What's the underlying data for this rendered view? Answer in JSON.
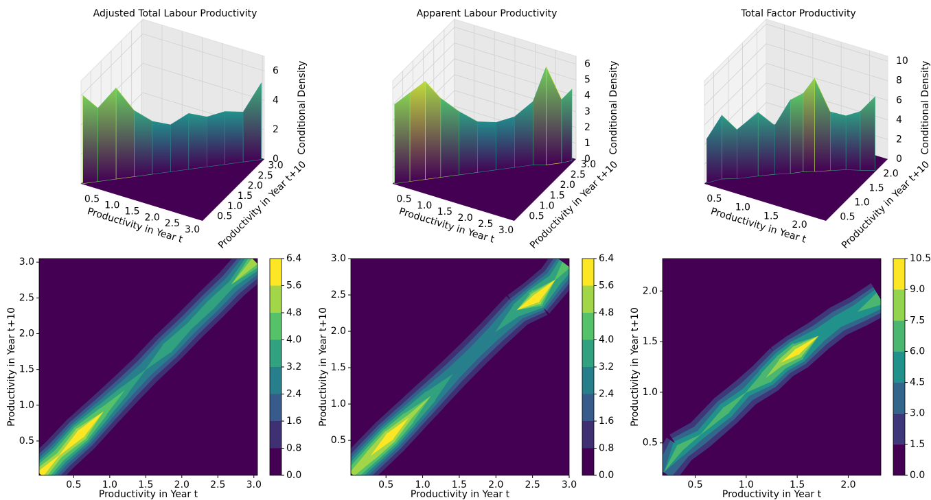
{
  "chart_data": [
    {
      "type": "surface-contour",
      "title": "Adjusted Total Labour Productivity",
      "x_label": "Productivity in Year t",
      "y_label": "Productivity in Year t+10",
      "z_label": "Conditional Density",
      "x": [
        0.05,
        0.3,
        0.6,
        0.9,
        1.2,
        1.5,
        1.8,
        2.1,
        2.4,
        2.7,
        3.0
      ],
      "y": [
        0.05,
        0.3,
        0.6,
        0.9,
        1.2,
        1.5,
        1.8,
        2.1,
        2.4,
        2.7,
        3.0
      ],
      "values": [
        6.0,
        5.0,
        6.2,
        4.5,
        3.6,
        3.2,
        3.8,
        3.4,
        3.6,
        3.4,
        5.2
      ],
      "xlim": [
        0.02,
        3.05
      ],
      "ylim": [
        0.02,
        3.05
      ],
      "xticks": [
        0.5,
        {
          "value": 1,
          "label": "1.0"
        },
        1.5,
        {
          "value": 2,
          "label": "2.0"
        },
        2.5,
        {
          "value": 3,
          "label": "3.0"
        }
      ],
      "yticks": [
        0.5,
        {
          "value": 1,
          "label": "1.0"
        },
        1.5,
        {
          "value": 2,
          "label": "2.0"
        },
        2.5,
        {
          "value": 3,
          "label": "3.0"
        }
      ],
      "zlim": [
        0,
        7
      ],
      "zticks": [
        0,
        2,
        4,
        6
      ],
      "levels": [
        {
          "value": 0,
          "label": "0.0"
        },
        0.8,
        1.6,
        2.4,
        3.2,
        {
          "value": 4,
          "label": "4.0"
        },
        4.8,
        5.6,
        6.4
      ]
    },
    {
      "type": "surface-contour",
      "title": "Apparent Labour Productivity",
      "x_label": "Productivity in Year t",
      "y_label": "Productivity in Year t+10",
      "z_label": "Conditional Density",
      "x": [
        0.05,
        0.3,
        0.55,
        0.8,
        1.1,
        1.4,
        1.7,
        2.0,
        2.3,
        2.55,
        2.8,
        2.95
      ],
      "y": [
        0.05,
        0.3,
        0.55,
        0.8,
        1.1,
        1.4,
        1.7,
        2.0,
        2.3,
        2.45,
        2.7,
        2.9
      ],
      "values": [
        5.0,
        5.6,
        6.2,
        5.0,
        4.0,
        3.2,
        3.0,
        3.2,
        4.0,
        6.2,
        4.0,
        4.5
      ],
      "xlim": [
        0.02,
        3.0
      ],
      "ylim": [
        0.02,
        3.0
      ],
      "xticks": [
        0.5,
        {
          "value": 1,
          "label": "1.0"
        },
        1.5,
        {
          "value": 2,
          "label": "2.0"
        },
        2.5,
        {
          "value": 3,
          "label": "3.0"
        }
      ],
      "yticks": [
        0.5,
        {
          "value": 1,
          "label": "1.0"
        },
        1.5,
        {
          "value": 2,
          "label": "2.0"
        },
        2.5,
        {
          "value": 3,
          "label": "3.0"
        }
      ],
      "zlim": [
        0,
        6.5
      ],
      "zticks": [
        0,
        1,
        2,
        3,
        4,
        5,
        6
      ],
      "levels": [
        {
          "value": 0,
          "label": "0.0"
        },
        0.8,
        1.6,
        2.4,
        3.2,
        {
          "value": 4,
          "label": "4.0"
        },
        4.8,
        5.6,
        6.4
      ]
    },
    {
      "type": "surface-contour",
      "title": "Total Factor Productivity",
      "x_label": "Productivity in Year t",
      "y_label": "Productivity in Year t+10",
      "z_label": "Conditional Density",
      "x": [
        0.2,
        0.35,
        0.55,
        0.8,
        1.0,
        1.2,
        1.35,
        1.5,
        1.7,
        1.9,
        2.1,
        2.3
      ],
      "y": [
        0.22,
        0.45,
        0.58,
        0.82,
        1.0,
        1.15,
        1.3,
        1.4,
        1.55,
        1.7,
        1.8,
        1.92
      ],
      "values": [
        4.5,
        6.5,
        5.0,
        6.5,
        5.0,
        7.5,
        8.0,
        9.5,
        6.0,
        5.5,
        6.0,
        7.5
      ],
      "xlim": [
        0.18,
        2.32
      ],
      "ylim": [
        0.18,
        2.32
      ],
      "xticks": [
        0.5,
        {
          "value": 1,
          "label": "1.0"
        },
        1.5,
        {
          "value": 2,
          "label": "2.0"
        }
      ],
      "yticks": [
        0.5,
        {
          "value": 1,
          "label": "1.0"
        },
        1.5,
        {
          "value": 2,
          "label": "2.0"
        }
      ],
      "zlim": [
        0,
        10.5
      ],
      "zticks": [
        0,
        2,
        4,
        6,
        8,
        10
      ],
      "levels": [
        {
          "value": 0,
          "label": "0.0"
        },
        1.5,
        {
          "value": 3,
          "label": "3.0"
        },
        4.5,
        {
          "value": 6,
          "label": "6.0"
        },
        7.5,
        {
          "value": 9,
          "label": "9.0"
        },
        10.5
      ]
    }
  ]
}
